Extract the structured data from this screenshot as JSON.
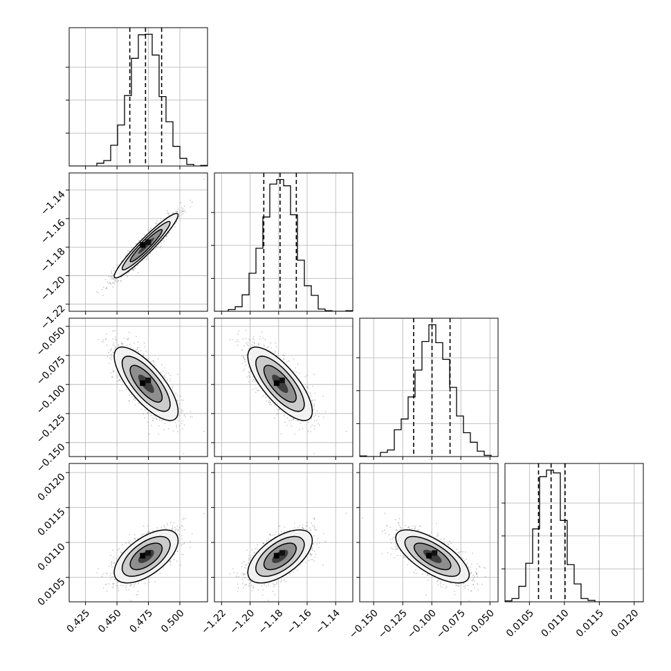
{
  "chart_data": {
    "type": "corner",
    "title": "",
    "parameters": [
      {
        "label": "",
        "range": [
          0.412,
          0.522
        ],
        "ticks": [
          0.425,
          0.45,
          0.475,
          0.5
        ],
        "tick_labels": [
          "0.425",
          "0.450",
          "0.475",
          "0.500"
        ],
        "mean": 0.4732,
        "sigma": 0.0127,
        "quantiles": [
          0.4602,
          0.4727,
          0.4855
        ]
      },
      {
        "label": "",
        "range": [
          -1.225,
          -1.128
        ],
        "ticks": [
          -1.22,
          -1.2,
          -1.18,
          -1.16,
          -1.14
        ],
        "tick_labels": [
          "−1.22",
          "−1.20",
          "−1.18",
          "−1.16",
          "−1.14"
        ],
        "mean": -1.179,
        "sigma": 0.0113,
        "quantiles": [
          -1.1904,
          -1.179,
          -1.1676
        ]
      },
      {
        "label": "",
        "range": [
          -0.162,
          -0.043
        ],
        "ticks": [
          -0.15,
          -0.125,
          -0.1,
          -0.075,
          -0.05
        ],
        "tick_labels": [
          "−0.150",
          "−0.125",
          "−0.100",
          "−0.075",
          "−0.050"
        ],
        "mean": -0.0994,
        "sigma": 0.0158,
        "quantiles": [
          -0.1156,
          -0.0998,
          -0.0843
        ]
      },
      {
        "label": "",
        "range": [
          0.01015,
          0.01213
        ],
        "ticks": [
          0.0105,
          0.011,
          0.0115,
          0.012
        ],
        "tick_labels": [
          "0.0105",
          "0.0110",
          "0.0115",
          "0.0120"
        ],
        "mean": 0.0108,
        "sigma": 0.00019,
        "quantiles": [
          0.01063,
          0.01081,
          0.01101
        ]
      }
    ],
    "correlations": [
      [
        0,
        1,
        0.95
      ],
      [
        0,
        2,
        -0.75
      ],
      [
        0,
        3,
        0.6
      ],
      [
        1,
        2,
        -0.75
      ],
      [
        1,
        3,
        0.6
      ],
      [
        2,
        3,
        -0.7
      ]
    ],
    "contour_levels": [
      0.5,
      1.0,
      1.5,
      2.0
    ],
    "histogram_bins": 20,
    "grid": true,
    "quantile_style": "dashed",
    "samples_per_panel": 1400,
    "colors": {
      "line": "#000000",
      "points": "#777777",
      "grid": "#b0b0b0"
    }
  }
}
